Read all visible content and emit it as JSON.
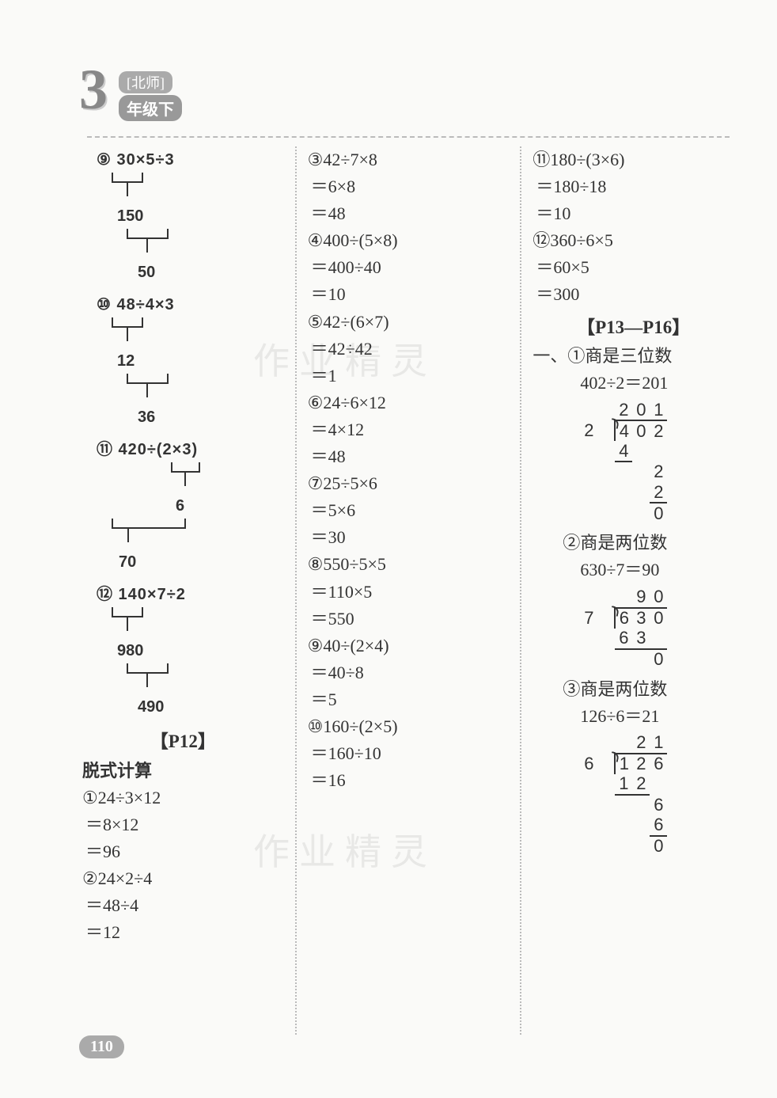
{
  "badge": {
    "number": "3",
    "tag": "[北师]",
    "grade": "年级下"
  },
  "watermark_text": "作业精灵",
  "page_number": "110",
  "col1": {
    "trees": [
      {
        "num": "⑨",
        "expr": "30×5÷3",
        "step1": "150",
        "step2": "50",
        "mode": "left-first"
      },
      {
        "num": "⑩",
        "expr": "48÷4×3",
        "step1": "12",
        "step2": "36",
        "mode": "left-first"
      },
      {
        "num": "⑪",
        "expr": "420÷(2×3)",
        "step1": "6",
        "step2": "70",
        "mode": "right-first"
      },
      {
        "num": "⑫",
        "expr": "140×7÷2",
        "step1": "980",
        "step2": "490",
        "mode": "left-first"
      }
    ],
    "section": "【P12】",
    "heading": "脱式计算",
    "problems": [
      {
        "num": "①",
        "lines": [
          "24÷3×12",
          "＝8×12",
          "＝96"
        ]
      },
      {
        "num": "②",
        "lines": [
          "24×2÷4",
          "＝48÷4",
          "＝12"
        ]
      }
    ]
  },
  "col2": {
    "problems": [
      {
        "num": "③",
        "lines": [
          "42÷7×8",
          "＝6×8",
          "＝48"
        ]
      },
      {
        "num": "④",
        "lines": [
          "400÷(5×8)",
          "＝400÷40",
          "＝10"
        ]
      },
      {
        "num": "⑤",
        "lines": [
          "42÷(6×7)",
          "＝42÷42",
          "＝1"
        ]
      },
      {
        "num": "⑥",
        "lines": [
          "24÷6×12",
          "＝4×12",
          "＝48"
        ]
      },
      {
        "num": "⑦",
        "lines": [
          "25÷5×6",
          "＝5×6",
          "＝30"
        ]
      },
      {
        "num": "⑧",
        "lines": [
          "550÷5×5",
          "＝110×5",
          "＝550"
        ]
      },
      {
        "num": "⑨",
        "lines": [
          "40÷(2×4)",
          "＝40÷8",
          "＝5"
        ]
      },
      {
        "num": "⑩",
        "lines": [
          "160÷(2×5)",
          "＝160÷10",
          "＝16"
        ]
      }
    ]
  },
  "col3": {
    "top_problems": [
      {
        "num": "⑪",
        "lines": [
          "180÷(3×6)",
          "＝180÷18",
          "＝10"
        ]
      },
      {
        "num": "⑫",
        "lines": [
          "360÷6×5",
          "＝60×5",
          "＝300"
        ]
      }
    ],
    "section": "【P13—P16】",
    "heading_prefix": "一、",
    "items": [
      {
        "num": "①",
        "desc": "商是三位数",
        "eq": "402÷2＝201",
        "div": {
          "divisor": "2",
          "dividend": [
            "4",
            "0",
            "2"
          ],
          "quotient": [
            "2",
            "0",
            "1"
          ],
          "rows": [
            {
              "cells": [
                "4",
                "",
                ""
              ],
              "ul": [
                true,
                false,
                false
              ]
            },
            {
              "cells": [
                "",
                "",
                "2"
              ],
              "ul": [
                false,
                false,
                false
              ]
            },
            {
              "cells": [
                "",
                "",
                "2"
              ],
              "ul": [
                false,
                false,
                true
              ]
            },
            {
              "cells": [
                "",
                "",
                "0"
              ],
              "ul": [
                false,
                false,
                false
              ]
            }
          ]
        }
      },
      {
        "num": "②",
        "desc": "商是两位数",
        "eq": "630÷7＝90",
        "div": {
          "divisor": "7",
          "dividend": [
            "6",
            "3",
            "0"
          ],
          "quotient": [
            "",
            "9",
            "0"
          ],
          "rows": [
            {
              "cells": [
                "6",
                "3",
                ""
              ],
              "ul": [
                true,
                true,
                true
              ]
            },
            {
              "cells": [
                "",
                "",
                "0"
              ],
              "ul": [
                false,
                false,
                false
              ]
            }
          ]
        }
      },
      {
        "num": "③",
        "desc": "商是两位数",
        "eq": "126÷6＝21",
        "div": {
          "divisor": "6",
          "dividend": [
            "1",
            "2",
            "6"
          ],
          "quotient": [
            "",
            "2",
            "1"
          ],
          "rows": [
            {
              "cells": [
                "1",
                "2",
                ""
              ],
              "ul": [
                true,
                true,
                false
              ]
            },
            {
              "cells": [
                "",
                "",
                "6"
              ],
              "ul": [
                false,
                false,
                false
              ]
            },
            {
              "cells": [
                "",
                "",
                "6"
              ],
              "ul": [
                false,
                false,
                true
              ]
            },
            {
              "cells": [
                "",
                "",
                "0"
              ],
              "ul": [
                false,
                false,
                false
              ]
            }
          ]
        }
      }
    ]
  },
  "styling": {
    "page_bg": "#fafaf8",
    "text_color": "#333333",
    "dash_color": "#bbbbbb",
    "font_size_body": 22,
    "font_size_badge_num": 72,
    "circled_border": "#444444"
  }
}
